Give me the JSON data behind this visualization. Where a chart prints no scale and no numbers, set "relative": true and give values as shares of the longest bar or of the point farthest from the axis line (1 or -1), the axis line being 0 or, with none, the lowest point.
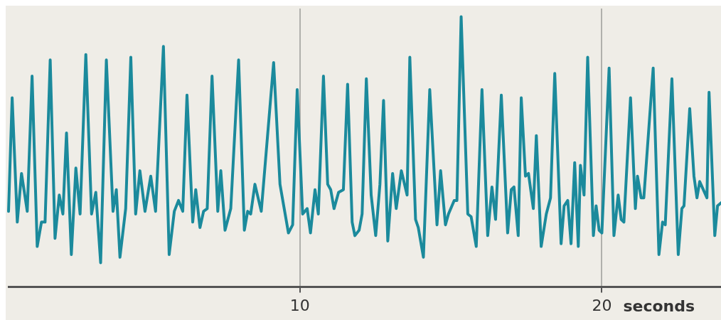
{
  "chart_data": {
    "type": "line",
    "relative": true,
    "xlabel": "seconds",
    "xlim": [
      0.35,
      24.04
    ],
    "xticks": [
      10,
      20
    ],
    "grid": "x",
    "marker": "none",
    "line_style": "solid",
    "legend": false,
    "x": [
      0.35,
      0.47,
      0.64,
      0.78,
      0.97,
      1.13,
      1.3,
      1.44,
      1.56,
      1.73,
      1.89,
      2.03,
      2.15,
      2.27,
      2.43,
      2.58,
      2.72,
      2.91,
      3.1,
      3.24,
      3.4,
      3.59,
      3.81,
      3.92,
      4.04,
      4.23,
      4.4,
      4.56,
      4.7,
      4.87,
      5.06,
      5.22,
      5.48,
      5.67,
      5.84,
      5.98,
      6.12,
      6.26,
      6.45,
      6.55,
      6.69,
      6.81,
      6.93,
      7.09,
      7.28,
      7.38,
      7.52,
      7.71,
      7.97,
      8.16,
      8.27,
      8.37,
      8.51,
      8.72,
      9.13,
      9.34,
      9.48,
      9.62,
      9.76,
      9.91,
      10.09,
      10.24,
      10.35,
      10.5,
      10.61,
      10.78,
      10.92,
      11.02,
      11.13,
      11.28,
      11.44,
      11.58,
      11.73,
      11.82,
      11.96,
      12.06,
      12.2,
      12.36,
      12.51,
      12.65,
      12.77,
      12.91,
      13.07,
      13.19,
      13.36,
      13.55,
      13.64,
      13.83,
      13.92,
      14.09,
      14.3,
      14.54,
      14.66,
      14.82,
      14.92,
      15.11,
      15.2,
      15.34,
      15.56,
      15.67,
      15.84,
      16.03,
      16.22,
      16.36,
      16.48,
      16.67,
      16.88,
      17.0,
      17.09,
      17.23,
      17.33,
      17.47,
      17.57,
      17.73,
      17.83,
      17.99,
      18.16,
      18.3,
      18.44,
      18.65,
      18.75,
      18.87,
      18.98,
      19.1,
      19.22,
      19.29,
      19.41,
      19.53,
      19.72,
      19.81,
      19.91,
      20.0,
      20.24,
      20.4,
      20.54,
      20.64,
      20.73,
      20.95,
      21.11,
      21.18,
      21.3,
      21.39,
      21.7,
      21.89,
      22.01,
      22.1,
      22.32,
      22.53,
      22.65,
      22.72,
      22.91,
      23.05,
      23.15,
      23.24,
      23.48,
      23.55,
      23.74,
      23.83,
      24.04
    ],
    "series": [
      {
        "color": "#1b8a9c",
        "values": [
          0.28,
          0.7,
          0.24,
          0.42,
          0.28,
          0.78,
          0.15,
          0.24,
          0.24,
          0.84,
          0.18,
          0.34,
          0.27,
          0.57,
          0.12,
          0.44,
          0.27,
          0.86,
          0.27,
          0.35,
          0.09,
          0.84,
          0.28,
          0.36,
          0.11,
          0.29,
          0.85,
          0.27,
          0.43,
          0.28,
          0.41,
          0.28,
          0.89,
          0.12,
          0.28,
          0.32,
          0.28,
          0.71,
          0.24,
          0.36,
          0.22,
          0.28,
          0.29,
          0.78,
          0.28,
          0.43,
          0.21,
          0.29,
          0.84,
          0.21,
          0.28,
          0.27,
          0.38,
          0.28,
          0.83,
          0.38,
          0.29,
          0.2,
          0.23,
          0.73,
          0.27,
          0.29,
          0.2,
          0.36,
          0.27,
          0.78,
          0.38,
          0.36,
          0.29,
          0.35,
          0.36,
          0.75,
          0.24,
          0.19,
          0.21,
          0.27,
          0.77,
          0.34,
          0.19,
          0.38,
          0.69,
          0.17,
          0.42,
          0.29,
          0.43,
          0.34,
          0.85,
          0.25,
          0.22,
          0.11,
          0.73,
          0.23,
          0.43,
          0.23,
          0.27,
          0.32,
          0.32,
          1,
          0.27,
          0.26,
          0.15,
          0.73,
          0.19,
          0.37,
          0.25,
          0.71,
          0.2,
          0.36,
          0.37,
          0.19,
          0.7,
          0.41,
          0.42,
          0.29,
          0.56,
          0.15,
          0.27,
          0.33,
          0.79,
          0.16,
          0.3,
          0.32,
          0.16,
          0.46,
          0.15,
          0.45,
          0.34,
          0.85,
          0.19,
          0.3,
          0.21,
          0.2,
          0.81,
          0.19,
          0.34,
          0.25,
          0.24,
          0.7,
          0.29,
          0.41,
          0.33,
          0.33,
          0.81,
          0.12,
          0.24,
          0.23,
          0.77,
          0.12,
          0.29,
          0.3,
          0.66,
          0.41,
          0.33,
          0.39,
          0.33,
          0.72,
          0.19,
          0.3,
          0.32
        ]
      }
    ]
  }
}
